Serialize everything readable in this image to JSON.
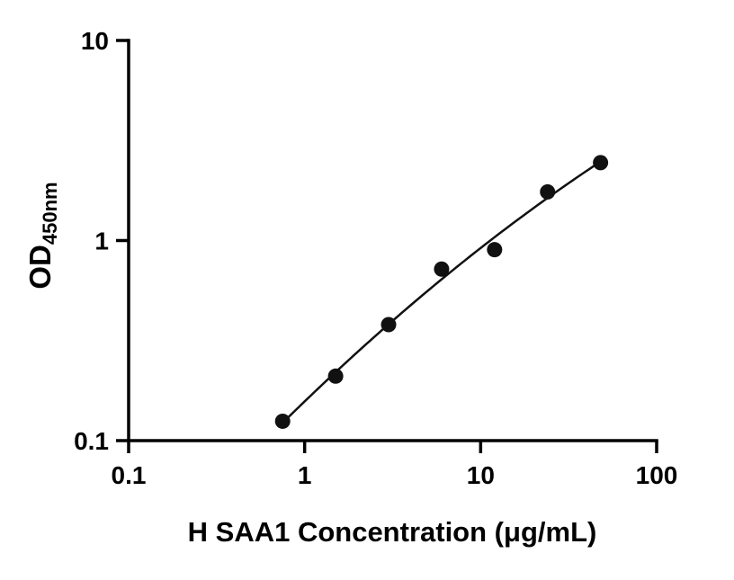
{
  "figure": {
    "background": "#ffffff"
  },
  "chart_data": {
    "type": "scatter",
    "title": "",
    "xlabel": "H SAA1 Concentration (μg/mL)",
    "ylabel": "OD",
    "ylabel_subscript": "450nm",
    "x_scale": "log10",
    "y_scale": "log10",
    "xlim": [
      0.1,
      100
    ],
    "ylim": [
      0.1,
      10
    ],
    "grid": false,
    "legend": "none",
    "x_ticks": [
      {
        "value": 0.1,
        "label": "0.1"
      },
      {
        "value": 1,
        "label": "1"
      },
      {
        "value": 10,
        "label": "10"
      },
      {
        "value": 100,
        "label": "100"
      }
    ],
    "y_ticks": [
      {
        "value": 0.1,
        "label": "0.1"
      },
      {
        "value": 1,
        "label": "1"
      },
      {
        "value": 10,
        "label": "10"
      }
    ],
    "points": [
      {
        "x": 0.75,
        "y": 0.125
      },
      {
        "x": 1.5,
        "y": 0.21
      },
      {
        "x": 3,
        "y": 0.38
      },
      {
        "x": 6,
        "y": 0.72
      },
      {
        "x": 12,
        "y": 0.9
      },
      {
        "x": 24,
        "y": 1.75
      },
      {
        "x": 48,
        "y": 2.45
      }
    ],
    "curve": {
      "style": "smooth standard-curve fit line from first point to last point",
      "fit": "quadratic-in-log-log"
    },
    "marker": {
      "shape": "circle",
      "radius": 8.5
    },
    "colors": {
      "points": "#111111",
      "line": "#111111",
      "axis": "#000000",
      "text": "#000000",
      "background": "#ffffff"
    }
  }
}
